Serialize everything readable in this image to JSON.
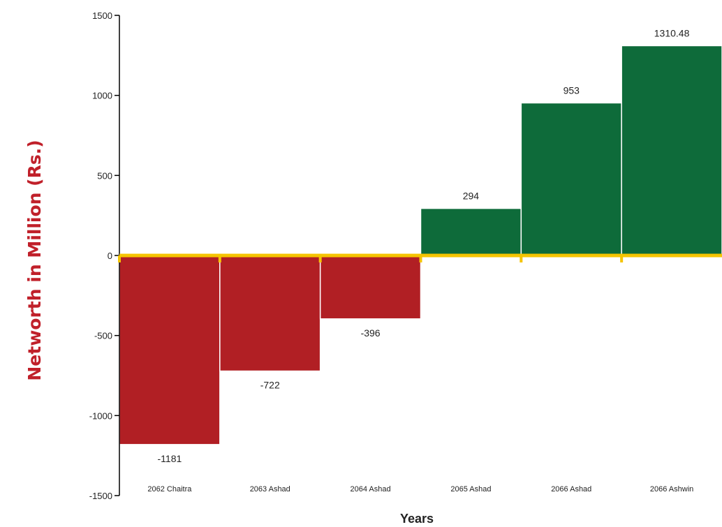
{
  "chart_data": {
    "type": "bar",
    "categories": [
      "2062 Chaitra",
      "2063 Ashad",
      "2064 Ashad",
      "2065 Ashad",
      "2066 Ashad",
      "2066 Ashwin"
    ],
    "values": [
      -1181,
      -722,
      -396,
      294,
      953,
      1310.48
    ],
    "value_labels": [
      "-1181",
      "-722",
      "-396",
      "294",
      "953",
      "1310.48"
    ],
    "title": "",
    "xlabel": "Years",
    "ylabel": "Networth in  Million (Rs.)",
    "ylim": [
      -1500,
      1500
    ],
    "yticks": [
      -1500,
      -1000,
      -500,
      0,
      500,
      1000,
      1500
    ],
    "ytick_labels": [
      "-1500",
      "-1000",
      "-500",
      "0",
      "500",
      "1000",
      "1500"
    ],
    "grid": false,
    "legend": "none",
    "colors": {
      "negative": "#b11f24",
      "positive": "#0e6b3a",
      "zero_line": "#f5c400",
      "axis": "#000000",
      "ylabel": "#c0202a"
    }
  }
}
